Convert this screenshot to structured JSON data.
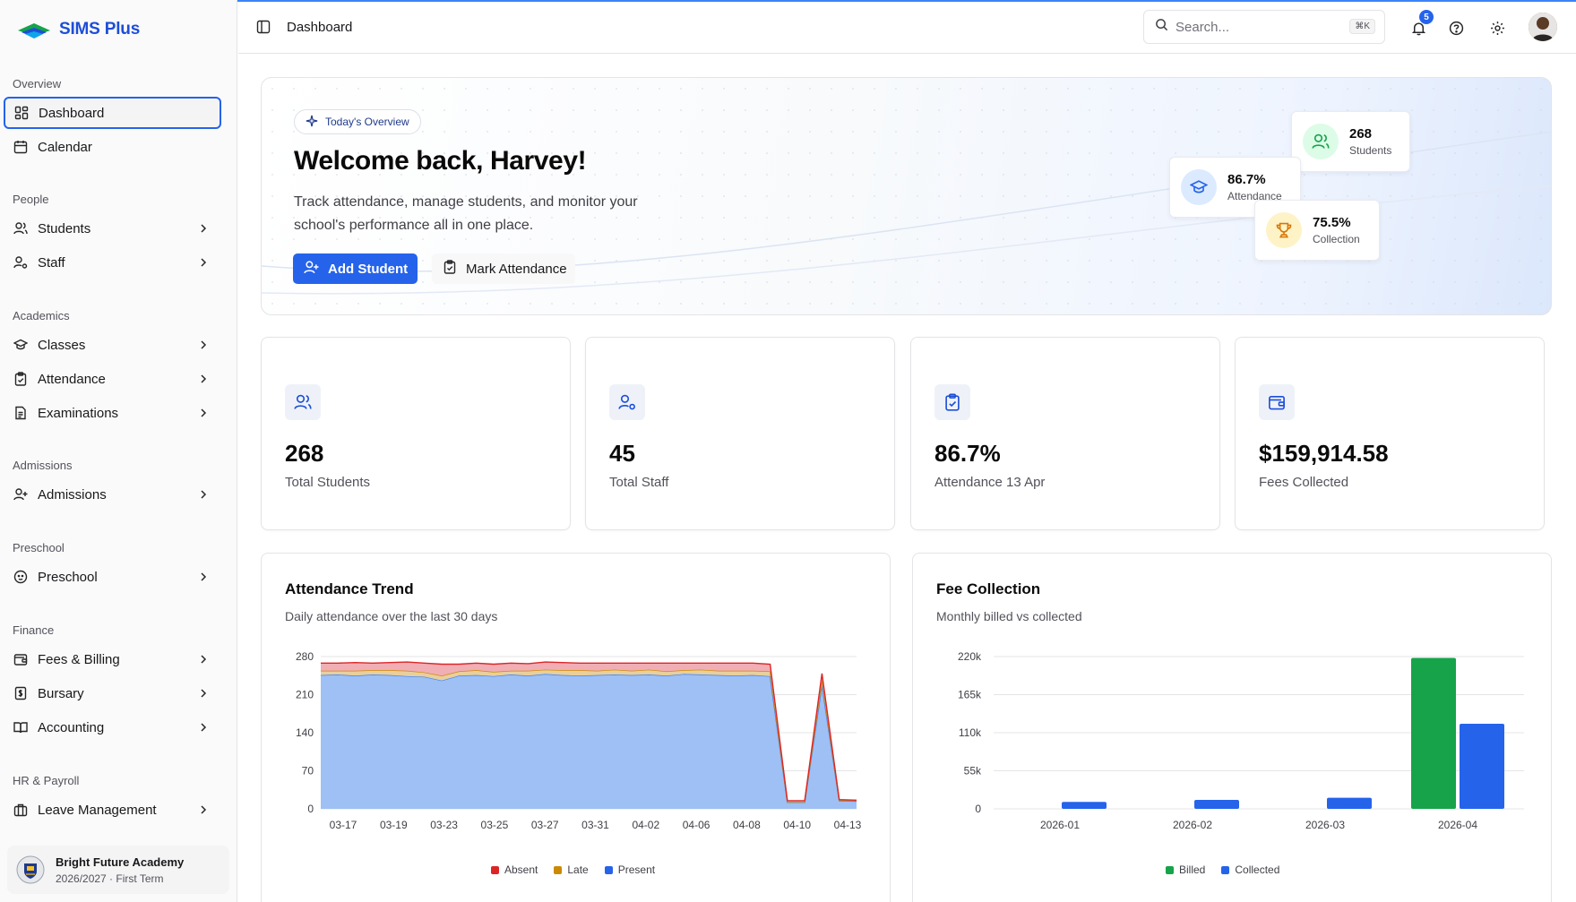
{
  "app": {
    "name": "SIMS Plus"
  },
  "header": {
    "title": "Dashboard",
    "search_placeholder": "Search...",
    "search_shortcut": "⌘K",
    "notification_count": "5"
  },
  "sidebar": {
    "groups": {
      "overview": "Overview",
      "people": "People",
      "academics": "Academics",
      "admissions": "Admissions",
      "preschool": "Preschool",
      "finance": "Finance",
      "hr": "HR & Payroll"
    },
    "items": {
      "dashboard": "Dashboard",
      "calendar": "Calendar",
      "students": "Students",
      "staff": "Staff",
      "classes": "Classes",
      "attendance": "Attendance",
      "examinations": "Examinations",
      "admissions": "Admissions",
      "preschool": "Preschool",
      "fees": "Fees & Billing",
      "bursary": "Bursary",
      "accounting": "Accounting",
      "leave": "Leave Management"
    },
    "school": {
      "name": "Bright Future Academy",
      "term": "2026/2027 · First Term"
    }
  },
  "hero": {
    "chip": "Today's Overview",
    "title": "Welcome back, Harvey!",
    "subtitle": "Track attendance, manage students, and monitor your school's performance all in one place.",
    "add_student": "Add Student",
    "mark_attendance": "Mark Attendance",
    "mini": {
      "students_value": "268",
      "students_label": "Students",
      "attendance_value": "86.7%",
      "attendance_label": "Attendance",
      "collection_value": "75.5%",
      "collection_label": "Collection"
    }
  },
  "stats": {
    "students": {
      "value": "268",
      "label": "Total Students"
    },
    "staff": {
      "value": "45",
      "label": "Total Staff"
    },
    "attendance": {
      "value": "86.7%",
      "label": "Attendance 13 Apr"
    },
    "fees": {
      "value": "$159,914.58",
      "label": "Fees Collected"
    }
  },
  "colors": {
    "primary": "#2563eb",
    "absent": "#dc2626",
    "late": "#ca8a04",
    "present": "#2563eb",
    "billed": "#16a34a",
    "collected": "#2563eb"
  },
  "chart_data": [
    {
      "type": "area",
      "title": "Attendance Trend",
      "subtitle": "Daily attendance over the last 30 days",
      "x_ticks": [
        "03-17",
        "03-19",
        "03-23",
        "03-25",
        "03-27",
        "03-31",
        "04-02",
        "04-06",
        "04-08",
        "04-10",
        "04-13"
      ],
      "y_ticks": [
        0,
        70,
        140,
        210,
        280
      ],
      "ylim": [
        0,
        280
      ],
      "stacked": true,
      "series": [
        {
          "name": "Present",
          "values": [
            246,
            247,
            245,
            247,
            246,
            244,
            243,
            236,
            245,
            246,
            244,
            247,
            245,
            248,
            246,
            245,
            246,
            247,
            246,
            247,
            245,
            248,
            247,
            246,
            245,
            246,
            244,
            12,
            12,
            228,
            15,
            14
          ]
        },
        {
          "name": "Late",
          "values": [
            8,
            7,
            9,
            8,
            9,
            10,
            8,
            9,
            8,
            9,
            8,
            7,
            9,
            8,
            9,
            10,
            8,
            9,
            8,
            9,
            8,
            7,
            9,
            8,
            9,
            8,
            9,
            1,
            1,
            10,
            1,
            1
          ]
        },
        {
          "name": "Absent",
          "values": [
            14,
            14,
            15,
            13,
            14,
            16,
            17,
            21,
            13,
            13,
            14,
            14,
            13,
            14,
            14,
            13,
            14,
            12,
            14,
            12,
            15,
            13,
            12,
            14,
            14,
            14,
            13,
            2,
            2,
            11,
            1,
            1
          ]
        }
      ],
      "legend": [
        "Absent",
        "Late",
        "Present"
      ]
    },
    {
      "type": "bar",
      "title": "Fee Collection",
      "subtitle": "Monthly billed vs collected",
      "categories": [
        "2026-01",
        "2026-02",
        "2026-03",
        "2026-04"
      ],
      "y_ticks": [
        "0",
        "55k",
        "110k",
        "165k",
        "220k"
      ],
      "ylim": [
        0,
        220000
      ],
      "series": [
        {
          "name": "Billed",
          "values": [
            0,
            0,
            0,
            218000
          ]
        },
        {
          "name": "Collected",
          "values": [
            10000,
            13000,
            16000,
            123000
          ]
        }
      ],
      "legend": [
        "Billed",
        "Collected"
      ]
    }
  ]
}
